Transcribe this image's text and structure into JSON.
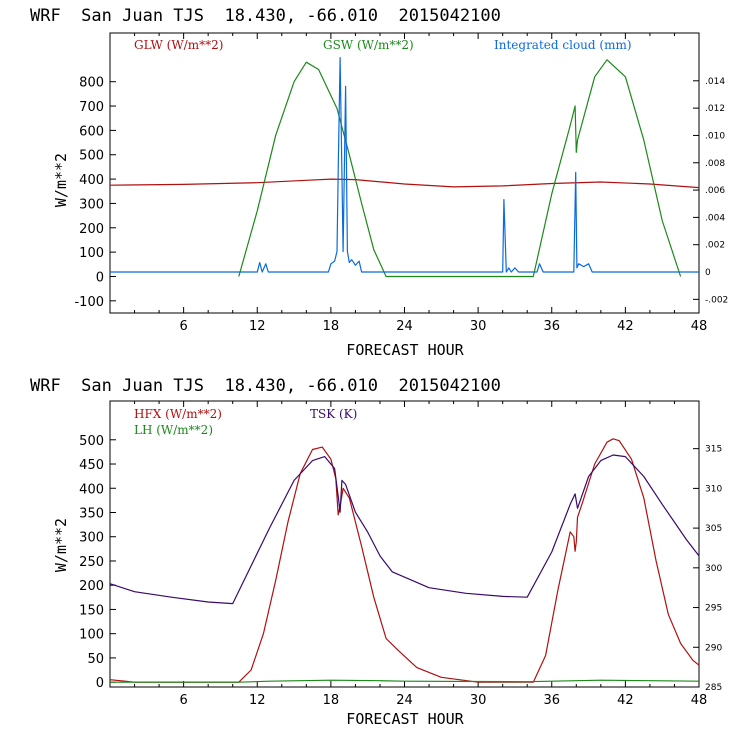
{
  "colors": {
    "glw": "#b01010",
    "gsw": "#1a8a1a",
    "cloud": "#0a6adf",
    "hfx": "#b01010",
    "lh": "#1a8a1a",
    "tsk": "#3a0a6a"
  },
  "chart_data": [
    {
      "type": "line",
      "title": "WRF  San Juan TJS  18.430, -66.010  2015042100",
      "xlabel": "FORECAST HOUR",
      "ylabel": "W/m**2",
      "xlim": [
        0,
        48
      ],
      "ylim": [
        -150,
        1000
      ],
      "y2lim": [
        -0.003,
        0.0175
      ],
      "xticks": [
        "6",
        "12",
        "18",
        "24",
        "30",
        "36",
        "42",
        "48"
      ],
      "xtick_values": [
        6,
        12,
        18,
        24,
        30,
        36,
        42,
        48
      ],
      "yticks": [
        "-100",
        "0",
        "100",
        "200",
        "300",
        "400",
        "500",
        "600",
        "700",
        "800"
      ],
      "ytick_values": [
        -100,
        0,
        100,
        200,
        300,
        400,
        500,
        600,
        700,
        800
      ],
      "y2ticks": [
        "-.002",
        "0",
        ".002",
        ".004",
        ".006",
        ".008",
        ".010",
        ".012",
        ".014"
      ],
      "y2tick_values": [
        -0.002,
        0,
        0.002,
        0.004,
        0.006,
        0.008,
        0.01,
        0.012,
        0.014
      ],
      "series": [
        {
          "name": "GLW (W/m**2)",
          "color": "glw",
          "axis": "left",
          "x": [
            0,
            6,
            12,
            16,
            18,
            20,
            24,
            28,
            32,
            36,
            40,
            44,
            48
          ],
          "y": [
            375,
            378,
            385,
            395,
            400,
            398,
            380,
            368,
            372,
            382,
            388,
            380,
            365
          ]
        },
        {
          "name": "GSW (W/m**2)",
          "color": "gsw",
          "axis": "left",
          "x": [
            10.5,
            12,
            13.5,
            15,
            16,
            17,
            18.5,
            19.5,
            20.5,
            21.5,
            22.5,
            34.5,
            36,
            37.5,
            37.9,
            38,
            38.1,
            39.5,
            40.5,
            42,
            43.5,
            45,
            46.5
          ],
          "y": [
            0,
            270,
            580,
            800,
            880,
            850,
            690,
            500,
            300,
            110,
            0,
            0,
            340,
            620,
            700,
            510,
            560,
            820,
            890,
            820,
            560,
            230,
            0
          ]
        },
        {
          "name": "Integrated cloud (mm)",
          "color": "cloud",
          "axis": "right",
          "x": [
            0,
            12,
            12.2,
            12.4,
            12.7,
            12.9,
            13.1,
            17.8,
            18,
            18.3,
            18.5,
            18.6,
            18.75,
            18.9,
            19,
            19.2,
            19.35,
            19.5,
            19.7,
            20,
            20.3,
            20.5,
            32,
            32.1,
            32.3,
            32.5,
            32.7,
            33,
            33.3,
            34.8,
            35,
            35.3,
            37.8,
            37.95,
            38.05,
            38.2,
            38.6,
            39,
            39.3,
            48
          ],
          "y": [
            0,
            0,
            0.0007,
            0,
            0.0006,
            0,
            0,
            0,
            0.0006,
            0.0008,
            0.0015,
            0.0074,
            0.0157,
            0.0073,
            0.0015,
            0.0136,
            0.0015,
            0.0007,
            0.0009,
            0.0005,
            0.0008,
            0,
            0,
            0.0053,
            0,
            0.0003,
            0,
            0.0003,
            0,
            0,
            0.0006,
            0,
            0,
            0.0073,
            0.0003,
            0.0006,
            0.0004,
            0.0006,
            0,
            0
          ]
        }
      ]
    },
    {
      "type": "line",
      "title": "WRF  San Juan TJS  18.430, -66.010  2015042100",
      "xlabel": "FORECAST HOUR",
      "ylabel": "W/m**2",
      "xlim": [
        0,
        48
      ],
      "ylim": [
        -10,
        580
      ],
      "y2lim": [
        285,
        321
      ],
      "xticks": [
        "6",
        "12",
        "18",
        "24",
        "30",
        "36",
        "42",
        "48"
      ],
      "xtick_values": [
        6,
        12,
        18,
        24,
        30,
        36,
        42,
        48
      ],
      "yticks": [
        "0",
        "50",
        "100",
        "150",
        "200",
        "250",
        "300",
        "350",
        "400",
        "450",
        "500"
      ],
      "ytick_values": [
        0,
        50,
        100,
        150,
        200,
        250,
        300,
        350,
        400,
        450,
        500
      ],
      "y2ticks": [
        "285",
        "290",
        "295",
        "300",
        "305",
        "310",
        "315"
      ],
      "y2tick_values": [
        285,
        290,
        295,
        300,
        305,
        310,
        315
      ],
      "series": [
        {
          "name": "HFX (W/m**2)",
          "color": "hfx",
          "axis": "left",
          "x": [
            0,
            2,
            10.5,
            11.5,
            12.5,
            13.5,
            14.5,
            15.5,
            16.5,
            17.3,
            18,
            18.4,
            18.6,
            18.8,
            19,
            19.5,
            20.5,
            21.5,
            22.5,
            23.5,
            25,
            27,
            30,
            34.5,
            35.5,
            36.5,
            37.5,
            37.8,
            37.9,
            38,
            38.1,
            38.5,
            39.5,
            40.5,
            41,
            41.5,
            42.5,
            43.5,
            44.5,
            45.5,
            46.5,
            47.5,
            48
          ],
          "y": [
            5,
            0,
            0,
            25,
            100,
            210,
            330,
            430,
            480,
            485,
            460,
            420,
            345,
            370,
            400,
            380,
            280,
            175,
            90,
            65,
            30,
            10,
            0,
            0,
            55,
            190,
            310,
            300,
            270,
            290,
            340,
            370,
            450,
            495,
            502,
            498,
            460,
            380,
            250,
            140,
            80,
            45,
            35
          ]
        },
        {
          "name": "LH (W/m**2)",
          "color": "lh",
          "axis": "left",
          "x": [
            0,
            10.5,
            13,
            18,
            22,
            24,
            34,
            36,
            40,
            44,
            48
          ],
          "y": [
            0,
            0,
            2,
            4,
            3,
            2,
            1,
            2,
            4,
            3,
            2
          ]
        },
        {
          "name": "TSK (K)",
          "color": "tsk",
          "axis": "right",
          "x": [
            0,
            2,
            5,
            8,
            10,
            13,
            15,
            16.5,
            17.5,
            18.3,
            18.6,
            18.75,
            18.9,
            19.2,
            20,
            21,
            22,
            23,
            26,
            29,
            32,
            34,
            36,
            37.5,
            37.9,
            38.1,
            39,
            40,
            41,
            42,
            43.5,
            45,
            47,
            48
          ],
          "y": [
            298,
            297,
            296.3,
            295.7,
            295.5,
            305,
            311,
            313.5,
            314,
            312.5,
            309,
            307,
            311,
            310.5,
            307,
            304.5,
            301.5,
            299.5,
            297.5,
            296.8,
            296.4,
            296.3,
            302,
            308,
            309.3,
            307.5,
            311.5,
            313.5,
            314.2,
            314,
            311.5,
            308,
            303.5,
            301.5
          ]
        }
      ]
    }
  ]
}
